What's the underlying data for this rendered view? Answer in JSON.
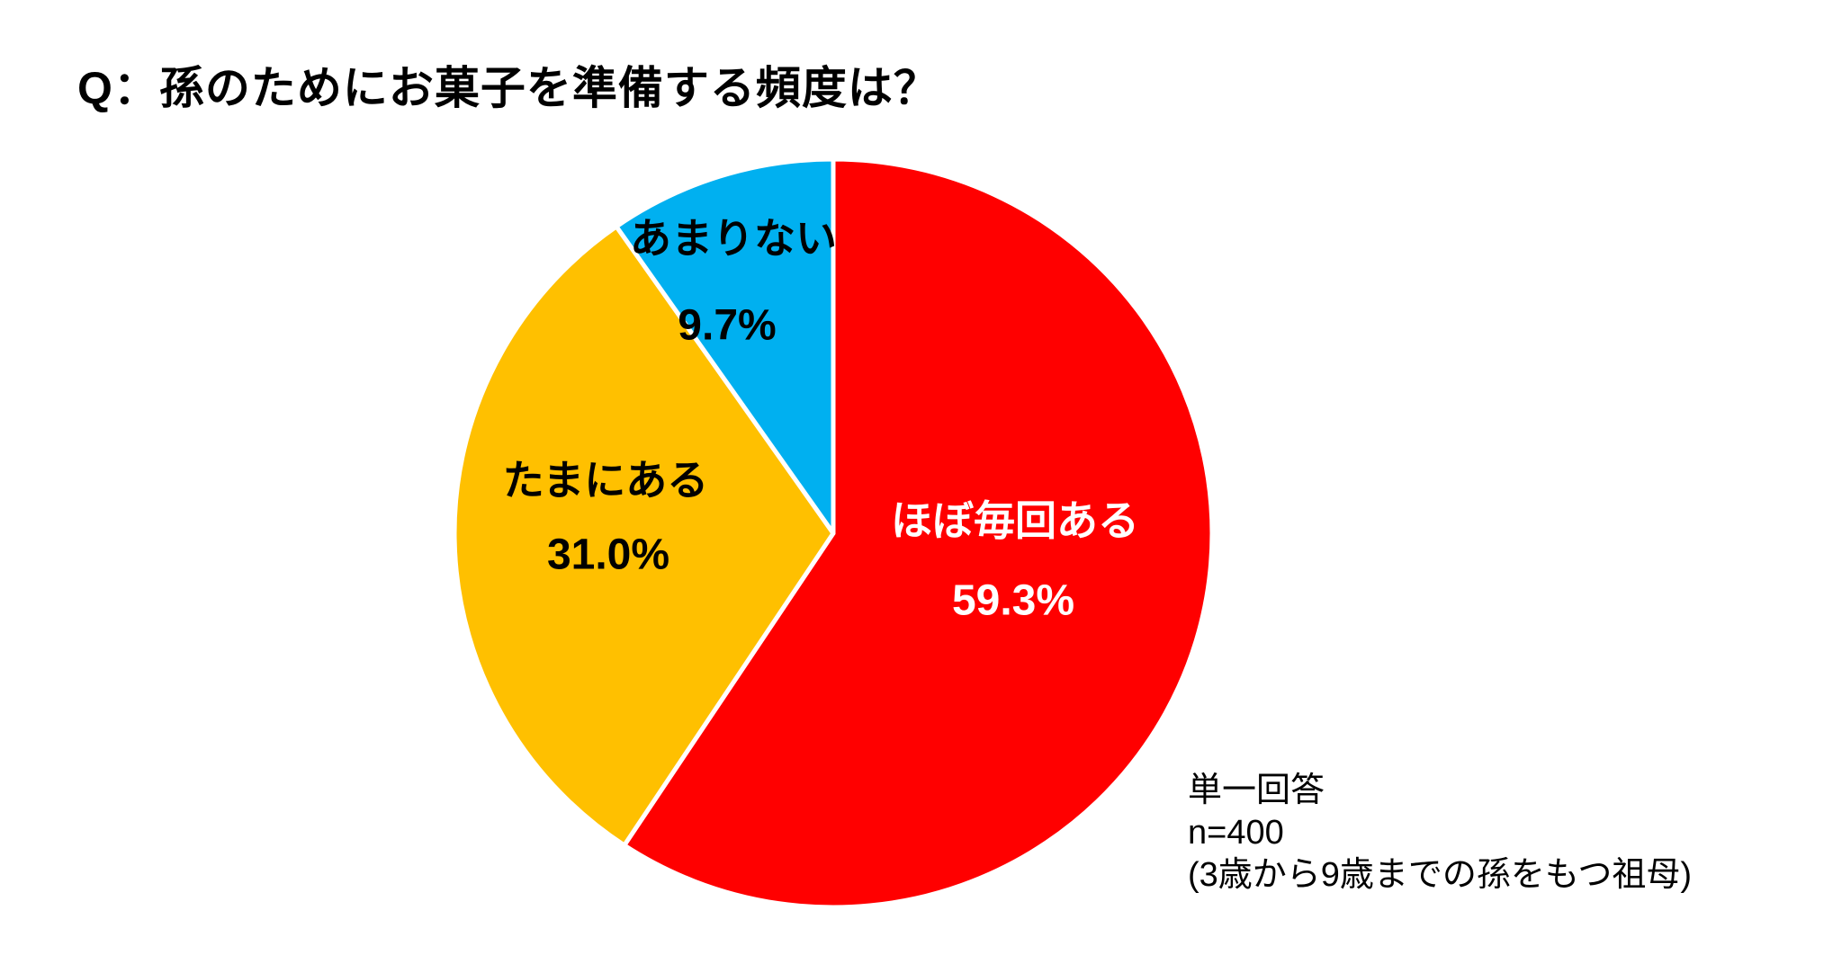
{
  "title": "Q：孫のためにお菓子を準備する頻度は？",
  "note": {
    "lines": [
      "単一回答",
      "n=400",
      "(3歳から9歳までの孫をもつ祖母)"
    ]
  },
  "chart_data": {
    "type": "pie",
    "title": "Q：孫のためにお菓子を準備する頻度は？",
    "start_angle_deg": 0,
    "direction": "clockwise",
    "unit": "%",
    "sample_note": "単一回答 n=400 (3歳から9歳までの孫をもつ祖母)",
    "slices": [
      {
        "label": "ほぼ毎回ある",
        "value": 59.3,
        "pct_label": "59.3%",
        "color": "#FF0000",
        "text_color": "#FFFFFF"
      },
      {
        "label": "たまにある",
        "value": 31.0,
        "pct_label": "31.0%",
        "color": "#FFC000",
        "text_color": "#000000"
      },
      {
        "label": "あまりない",
        "value": 9.7,
        "pct_label": "9.7%",
        "color": "#00B0F0",
        "text_color": "#000000"
      }
    ],
    "separator_color": "#FFFFFF",
    "background": "#FFFFFF",
    "legend": "none (labels inside slices)"
  }
}
